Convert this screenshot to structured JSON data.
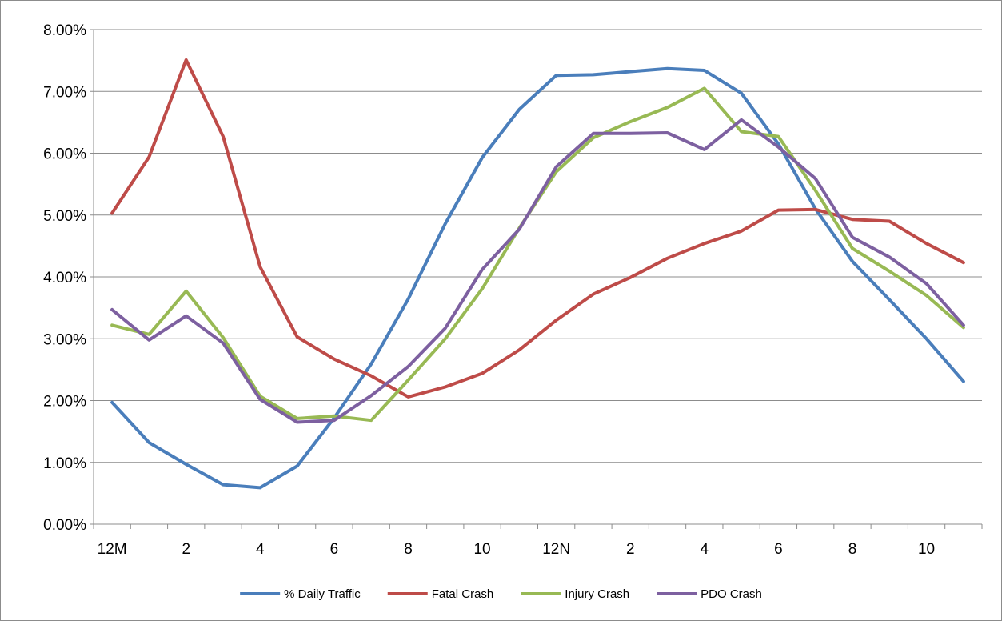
{
  "chart_data": {
    "type": "line",
    "title": "",
    "xlabel": "",
    "ylabel": "",
    "categories": [
      "12M",
      "1",
      "2",
      "3",
      "4",
      "5",
      "6",
      "7",
      "8",
      "9",
      "10",
      "11",
      "12N",
      "1",
      "2",
      "3",
      "4",
      "5",
      "6",
      "7",
      "8",
      "9",
      "10",
      "11"
    ],
    "x_tick_labels": [
      "12M",
      "2",
      "4",
      "6",
      "8",
      "10",
      "12N",
      "2",
      "4",
      "6",
      "8",
      "10"
    ],
    "y_tick_labels": [
      "0.00%",
      "1.00%",
      "2.00%",
      "3.00%",
      "4.00%",
      "5.00%",
      "6.00%",
      "7.00%",
      "8.00%"
    ],
    "ylim": [
      0,
      0.08
    ],
    "grid": "horizontal",
    "legend_position": "bottom",
    "series": [
      {
        "name": "% Daily Traffic",
        "color": "#4a7ebb",
        "values": [
          0.0197,
          0.0132,
          0.0097,
          0.0064,
          0.0059,
          0.0094,
          0.0172,
          0.0259,
          0.0364,
          0.0486,
          0.0593,
          0.0671,
          0.0726,
          0.0727,
          0.0732,
          0.0737,
          0.0734,
          0.0697,
          0.0615,
          0.051,
          0.0425,
          0.0363,
          0.03,
          0.0231
        ]
      },
      {
        "name": "Fatal Crash",
        "color": "#be4b48",
        "values": [
          0.0503,
          0.0594,
          0.0751,
          0.0627,
          0.0416,
          0.0303,
          0.0267,
          0.024,
          0.0206,
          0.0222,
          0.0244,
          0.0282,
          0.033,
          0.0372,
          0.0399,
          0.043,
          0.0454,
          0.0474,
          0.0508,
          0.0509,
          0.0493,
          0.049,
          0.0454,
          0.0423
        ]
      },
      {
        "name": "Injury Crash",
        "color": "#98b954",
        "values": [
          0.0322,
          0.0307,
          0.0377,
          0.0302,
          0.0207,
          0.0171,
          0.0175,
          0.0168,
          0.0233,
          0.03,
          0.0381,
          0.0479,
          0.057,
          0.0625,
          0.0651,
          0.0674,
          0.0705,
          0.0635,
          0.0627,
          0.054,
          0.0446,
          0.0409,
          0.037,
          0.0318
        ]
      },
      {
        "name": "PDO Crash",
        "color": "#7d60a0",
        "values": [
          0.0347,
          0.0298,
          0.0337,
          0.0293,
          0.0202,
          0.0165,
          0.0168,
          0.0208,
          0.0255,
          0.0317,
          0.0412,
          0.0477,
          0.0578,
          0.0632,
          0.0632,
          0.0633,
          0.0606,
          0.0654,
          0.061,
          0.0559,
          0.0464,
          0.0432,
          0.0389,
          0.0322
        ]
      }
    ]
  }
}
